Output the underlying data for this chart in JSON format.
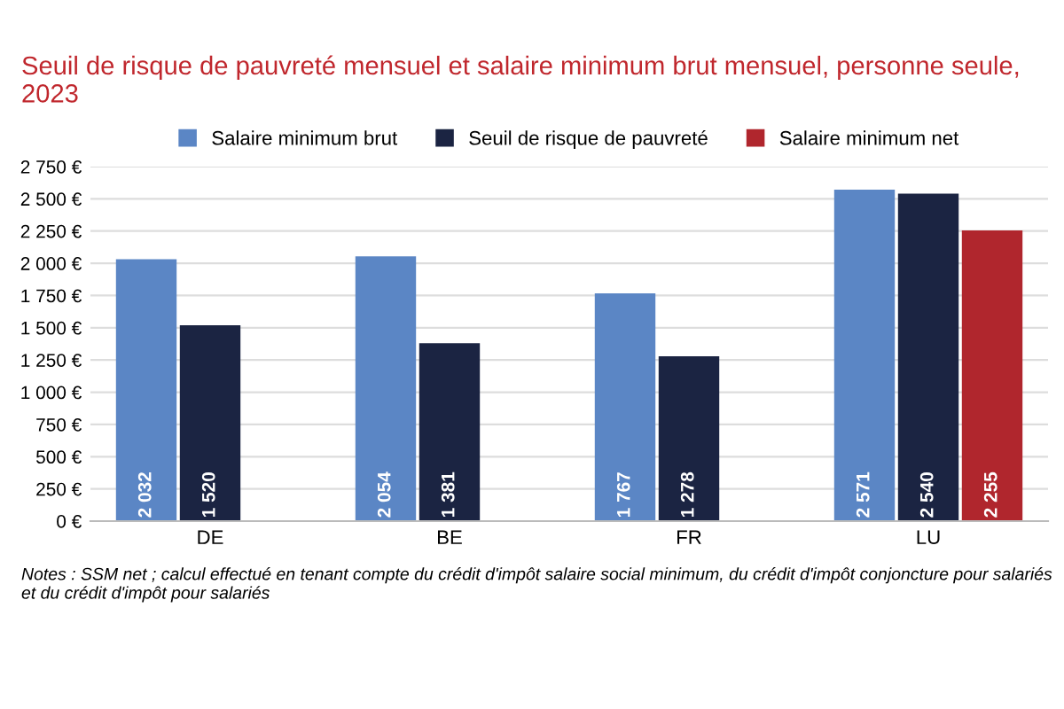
{
  "chart_data": {
    "type": "bar",
    "title": "Seuil de risque de pauvreté mensuel et salaire minimum brut mensuel, personne seule, 2023",
    "categories": [
      "DE",
      "BE",
      "FR",
      "LU"
    ],
    "series": [
      {
        "name": "Salaire minimum brut",
        "color": "#5b86c5",
        "values": [
          2032,
          2054,
          1767,
          2571
        ],
        "value_labels": [
          "2 032",
          "2 054",
          "1 767",
          "2 571"
        ]
      },
      {
        "name": "Seuil de risque de pauvreté",
        "color": "#1b2442",
        "values": [
          1520,
          1381,
          1278,
          2540
        ],
        "value_labels": [
          "1 520",
          "1 381",
          "1 278",
          "2 540"
        ]
      },
      {
        "name": "Salaire minimum net",
        "color": "#b0262d",
        "values": [
          null,
          null,
          null,
          2255
        ],
        "value_labels": [
          null,
          null,
          null,
          "2 255"
        ]
      }
    ],
    "ylim": [
      0,
      2750
    ],
    "yticks": [
      {
        "value": 0,
        "label": "0 €"
      },
      {
        "value": 250,
        "label": "250 €"
      },
      {
        "value": 500,
        "label": "500 €"
      },
      {
        "value": 750,
        "label": "750 €"
      },
      {
        "value": 1000,
        "label": "1 000 €"
      },
      {
        "value": 1250,
        "label": "1 250 €"
      },
      {
        "value": 1500,
        "label": "1 500 €"
      },
      {
        "value": 1750,
        "label": "1 750 €"
      },
      {
        "value": 2000,
        "label": "2 000 €"
      },
      {
        "value": 2250,
        "label": "2 250 €"
      },
      {
        "value": 2500,
        "label": "2 500 €"
      },
      {
        "value": 2750,
        "label": "2 750 €"
      }
    ],
    "grid": "y",
    "legend": "top",
    "annotations": [
      "Notes : SSM net ; calcul effectué en tenant compte du crédit d'impôt salaire social minimum, du crédit d'impôt conjoncture pour salariés et du crédit d'impôt pour salariés"
    ]
  }
}
